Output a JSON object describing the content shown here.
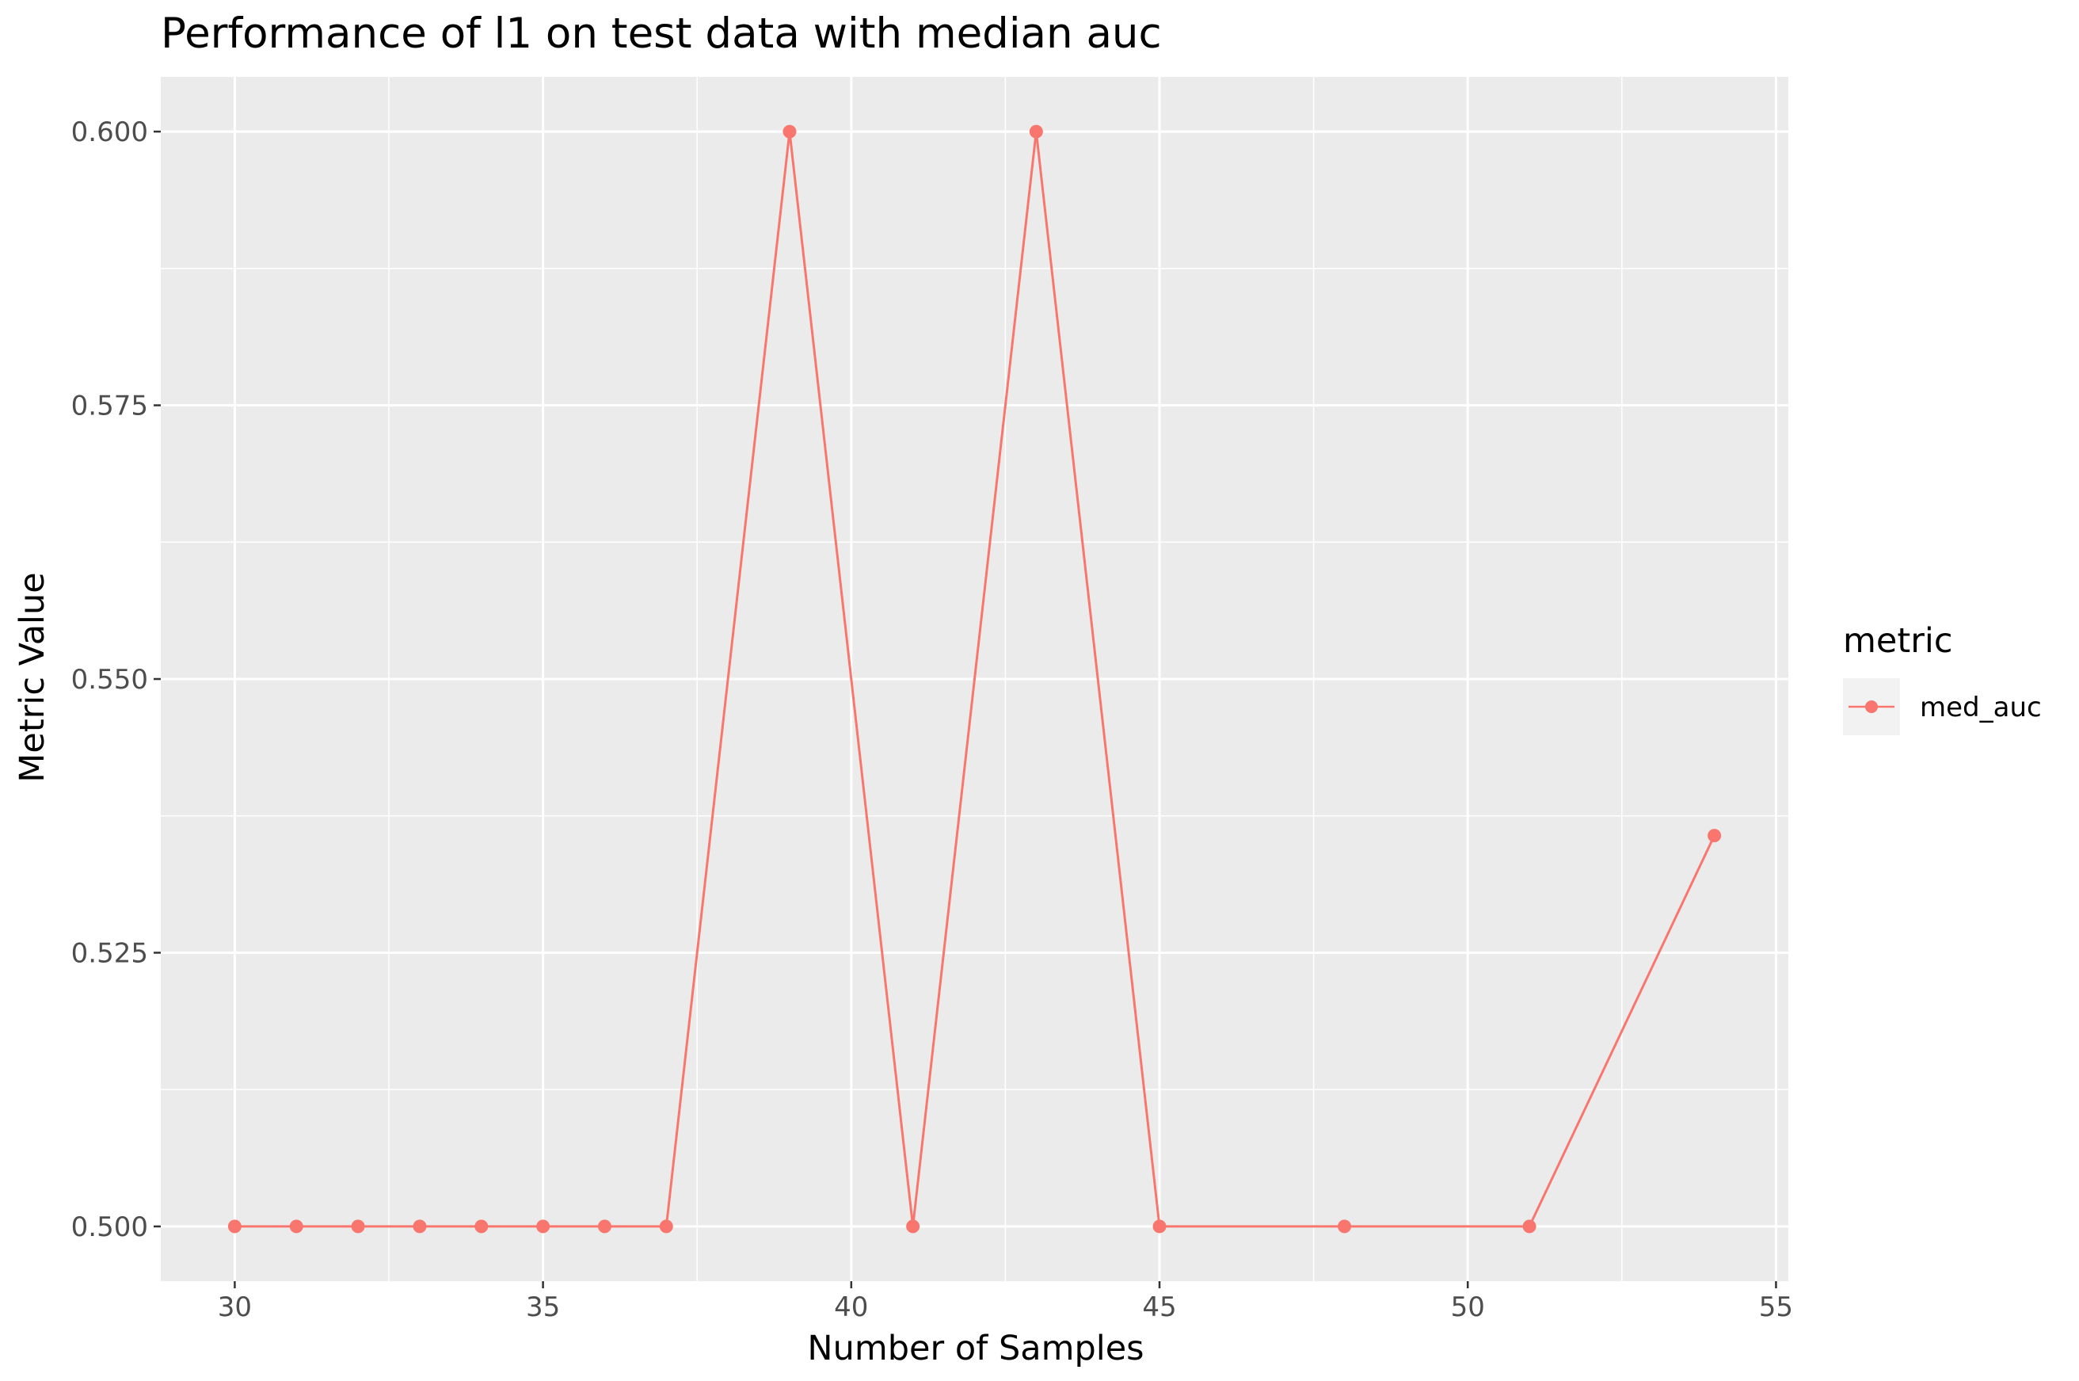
{
  "chart_data": {
    "type": "line",
    "title": "Performance of l1 on test data with median auc",
    "xlabel": "Number of Samples",
    "ylabel": "Metric Value",
    "x": [
      30,
      31,
      32,
      33,
      34,
      35,
      36,
      37,
      39,
      41,
      43,
      45,
      48,
      51,
      54
    ],
    "series": [
      {
        "name": "med_auc",
        "color": "#F8766D",
        "values": [
          0.5,
          0.5,
          0.5,
          0.5,
          0.5,
          0.5,
          0.5,
          0.5,
          0.6,
          0.5,
          0.6,
          0.5,
          0.5,
          0.5,
          0.5357
        ]
      }
    ],
    "xticks": [
      30,
      35,
      40,
      45,
      50,
      55
    ],
    "yticks": [
      0.5,
      0.525,
      0.55,
      0.575,
      0.6
    ],
    "xtick_labels": [
      "30",
      "35",
      "40",
      "45",
      "50",
      "55"
    ],
    "ytick_labels": [
      "0.500",
      "0.525",
      "0.550",
      "0.575",
      "0.600"
    ],
    "xlim": [
      28.8,
      55.2
    ],
    "ylim": [
      0.495,
      0.605
    ],
    "grid": true,
    "legend": {
      "title": "metric",
      "position": "right"
    },
    "panel_background": "#EBEBEB",
    "grid_color": "#FFFFFF"
  }
}
